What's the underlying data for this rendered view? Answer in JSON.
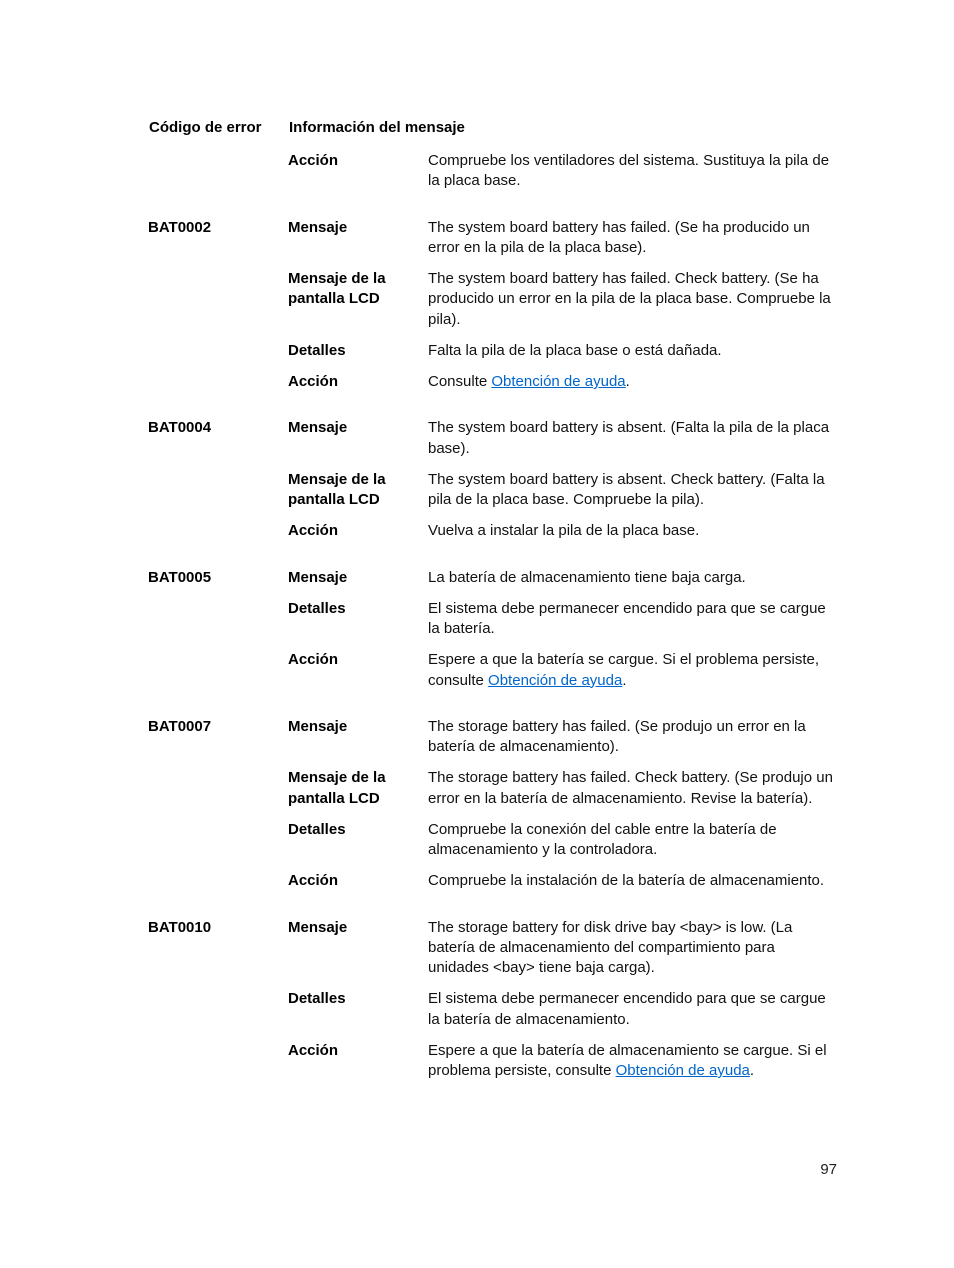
{
  "page_number": "97",
  "link_text": "Obtención de ayuda",
  "link_color": "#0066cc",
  "headers": {
    "code": "Código de error",
    "info": "Información del mensaje"
  },
  "labels": {
    "mensaje": "Mensaje",
    "lcd": "Mensaje de la pantalla LCD",
    "detalles": "Detalles",
    "accion": "Acción"
  },
  "rows": [
    {
      "code": "",
      "items": [
        {
          "type": "accion",
          "text": "Compruebe los ventiladores del sistema. Sustituya la pila de la placa base."
        }
      ]
    },
    {
      "code": "BAT0002",
      "items": [
        {
          "type": "mensaje",
          "text": "The system board battery has failed. (Se ha producido un error en la pila de la placa base)."
        },
        {
          "type": "lcd",
          "text": "The system board battery has failed. Check battery. (Se ha producido un error en la pila de la placa base. Compruebe la pila)."
        },
        {
          "type": "detalles",
          "text": "Falta la pila de la placa base o está dañada."
        },
        {
          "type": "accion",
          "text_before": "Consulte ",
          "link": true,
          "text_after": "."
        }
      ]
    },
    {
      "code": "BAT0004",
      "items": [
        {
          "type": "mensaje",
          "text": "The system board battery is absent. (Falta la pila de la placa base)."
        },
        {
          "type": "lcd",
          "text": "The system board battery is absent. Check battery. (Falta la pila de la placa base. Compruebe la pila)."
        },
        {
          "type": "accion",
          "text": "Vuelva a instalar la pila de la placa base."
        }
      ]
    },
    {
      "code": "BAT0005",
      "items": [
        {
          "type": "mensaje",
          "text": "La batería de almacenamiento tiene baja carga."
        },
        {
          "type": "detalles",
          "text": "El sistema debe permanecer encendido para que se cargue la batería."
        },
        {
          "type": "accion",
          "text_before": "Espere a que la batería se cargue. Si el problema persiste, consulte ",
          "link": true,
          "text_after": "."
        }
      ]
    },
    {
      "code": "BAT0007",
      "items": [
        {
          "type": "mensaje",
          "text": "The storage battery has failed. (Se produjo un error en la batería de almacenamiento)."
        },
        {
          "type": "lcd",
          "text": "The storage battery has failed. Check battery. (Se produjo un error en la batería de almacenamiento. Revise la batería)."
        },
        {
          "type": "detalles",
          "text": "Compruebe la conexión del cable entre la batería de almacenamiento y la controladora."
        },
        {
          "type": "accion",
          "text": "Compruebe la instalación de la batería de almacenamiento."
        }
      ]
    },
    {
      "code": "BAT0010",
      "items": [
        {
          "type": "mensaje",
          "text": "The storage battery for disk drive bay <bay> is low. (La batería de almacenamiento del compartimiento para unidades <bay> tiene baja carga)."
        },
        {
          "type": "detalles",
          "text": "El sistema debe permanecer encendido para que se cargue la batería de almacenamiento."
        },
        {
          "type": "accion",
          "text_before": "Espere a que la batería de almacenamiento se cargue. Si el problema persiste, consulte ",
          "link": true,
          "text_after": "."
        }
      ]
    }
  ]
}
